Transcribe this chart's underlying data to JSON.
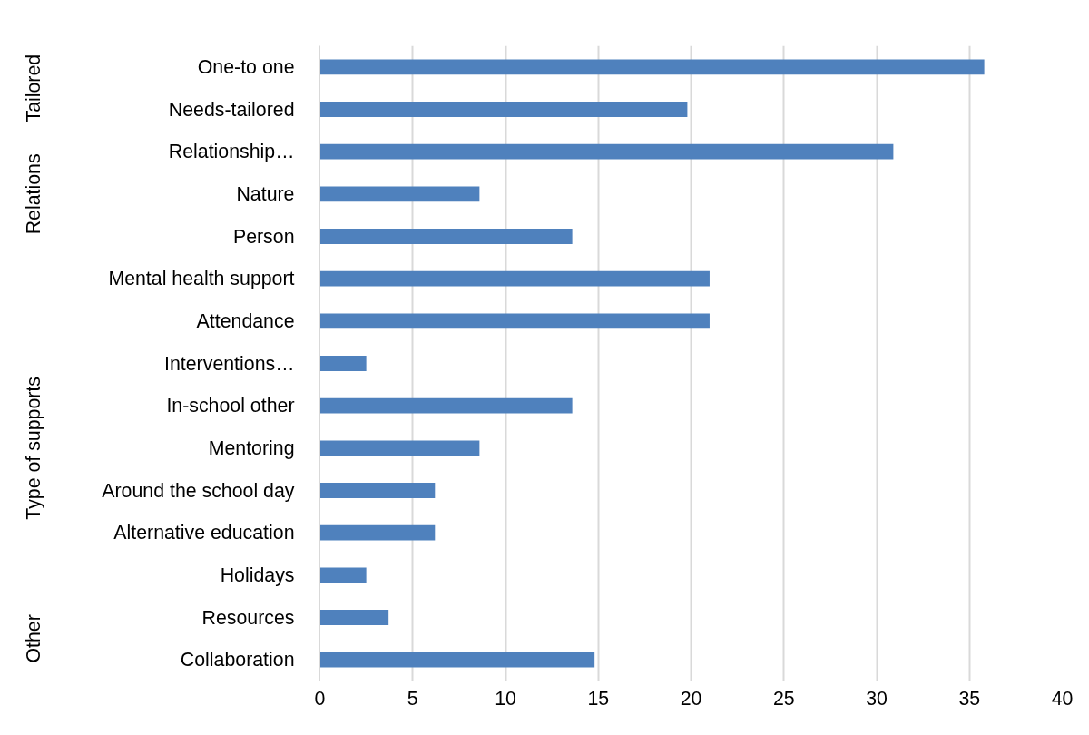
{
  "chart_data": {
    "type": "bar",
    "orientation": "horizontal",
    "categories": [
      "One-to one",
      "Needs-tailored",
      "Relationship…",
      "Nature",
      "Person",
      "Mental health support",
      "Attendance",
      "Interventions…",
      "In-school other",
      "Mentoring",
      "Around the school day",
      "Alternative education",
      "Holidays",
      "Resources",
      "Collaboration"
    ],
    "values": [
      35.8,
      19.8,
      30.9,
      8.6,
      13.6,
      21.0,
      21.0,
      2.5,
      13.6,
      8.6,
      6.2,
      6.2,
      2.5,
      3.7,
      14.8
    ],
    "color": "#4f81bd",
    "xlim": [
      0,
      40
    ],
    "xticks": [
      0,
      5,
      10,
      15,
      20,
      25,
      30,
      35,
      40
    ],
    "grid": "x",
    "annotations": [
      "Tailored",
      "Relations",
      "Type of supports",
      "Other"
    ]
  }
}
